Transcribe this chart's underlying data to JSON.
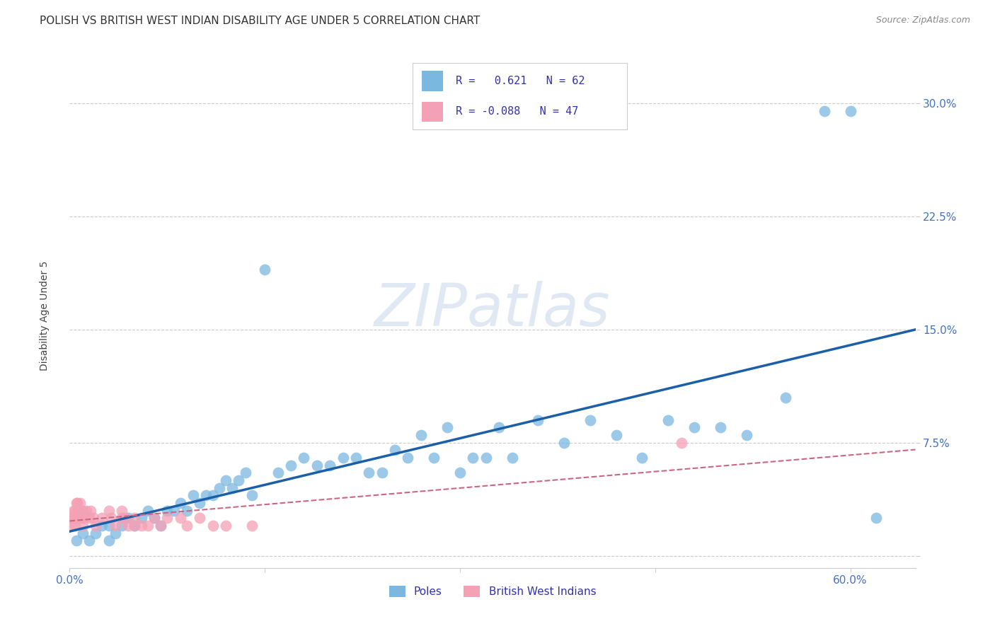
{
  "title": "POLISH VS BRITISH WEST INDIAN DISABILITY AGE UNDER 5 CORRELATION CHART",
  "source": "Source: ZipAtlas.com",
  "ylabel": "Disability Age Under 5",
  "xlim": [
    0.0,
    0.65
  ],
  "ylim": [
    -0.008,
    0.335
  ],
  "blue_color": "#7ab8e0",
  "pink_color": "#f4a0b5",
  "line_blue": "#1a5fa8",
  "line_pink": "#cc6680",
  "poles_x": [
    0.005,
    0.01,
    0.015,
    0.02,
    0.025,
    0.03,
    0.03,
    0.035,
    0.04,
    0.045,
    0.05,
    0.055,
    0.06,
    0.065,
    0.07,
    0.075,
    0.08,
    0.085,
    0.09,
    0.095,
    0.1,
    0.105,
    0.11,
    0.115,
    0.12,
    0.125,
    0.13,
    0.135,
    0.14,
    0.15,
    0.16,
    0.17,
    0.18,
    0.19,
    0.2,
    0.21,
    0.22,
    0.23,
    0.24,
    0.25,
    0.26,
    0.27,
    0.28,
    0.29,
    0.3,
    0.31,
    0.32,
    0.33,
    0.34,
    0.36,
    0.38,
    0.4,
    0.42,
    0.44,
    0.46,
    0.48,
    0.5,
    0.52,
    0.55,
    0.58,
    0.6,
    0.62
  ],
  "poles_y": [
    0.01,
    0.015,
    0.01,
    0.015,
    0.02,
    0.01,
    0.02,
    0.015,
    0.02,
    0.025,
    0.02,
    0.025,
    0.03,
    0.025,
    0.02,
    0.03,
    0.03,
    0.035,
    0.03,
    0.04,
    0.035,
    0.04,
    0.04,
    0.045,
    0.05,
    0.045,
    0.05,
    0.055,
    0.04,
    0.19,
    0.055,
    0.06,
    0.065,
    0.06,
    0.06,
    0.065,
    0.065,
    0.055,
    0.055,
    0.07,
    0.065,
    0.08,
    0.065,
    0.085,
    0.055,
    0.065,
    0.065,
    0.085,
    0.065,
    0.09,
    0.075,
    0.09,
    0.08,
    0.065,
    0.09,
    0.085,
    0.085,
    0.08,
    0.105,
    0.295,
    0.295,
    0.025
  ],
  "bwi_x": [
    0.001,
    0.002,
    0.003,
    0.003,
    0.004,
    0.004,
    0.005,
    0.005,
    0.006,
    0.006,
    0.006,
    0.007,
    0.007,
    0.008,
    0.008,
    0.009,
    0.01,
    0.01,
    0.01,
    0.012,
    0.013,
    0.015,
    0.016,
    0.018,
    0.02,
    0.025,
    0.03,
    0.032,
    0.035,
    0.04,
    0.04,
    0.042,
    0.045,
    0.05,
    0.05,
    0.055,
    0.06,
    0.065,
    0.07,
    0.075,
    0.085,
    0.09,
    0.1,
    0.11,
    0.12,
    0.14,
    0.47
  ],
  "bwi_y": [
    0.025,
    0.02,
    0.025,
    0.03,
    0.02,
    0.03,
    0.025,
    0.035,
    0.025,
    0.03,
    0.035,
    0.025,
    0.03,
    0.025,
    0.035,
    0.03,
    0.02,
    0.025,
    0.03,
    0.025,
    0.03,
    0.025,
    0.03,
    0.025,
    0.02,
    0.025,
    0.03,
    0.025,
    0.02,
    0.025,
    0.03,
    0.025,
    0.02,
    0.02,
    0.025,
    0.02,
    0.02,
    0.025,
    0.02,
    0.025,
    0.025,
    0.02,
    0.025,
    0.02,
    0.02,
    0.02,
    0.075
  ],
  "background_color": "#ffffff",
  "title_fontsize": 11,
  "axis_tick_fontsize": 11,
  "ylabel_fontsize": 10,
  "tick_color": "#4472c4",
  "grid_color": "#cccccc"
}
